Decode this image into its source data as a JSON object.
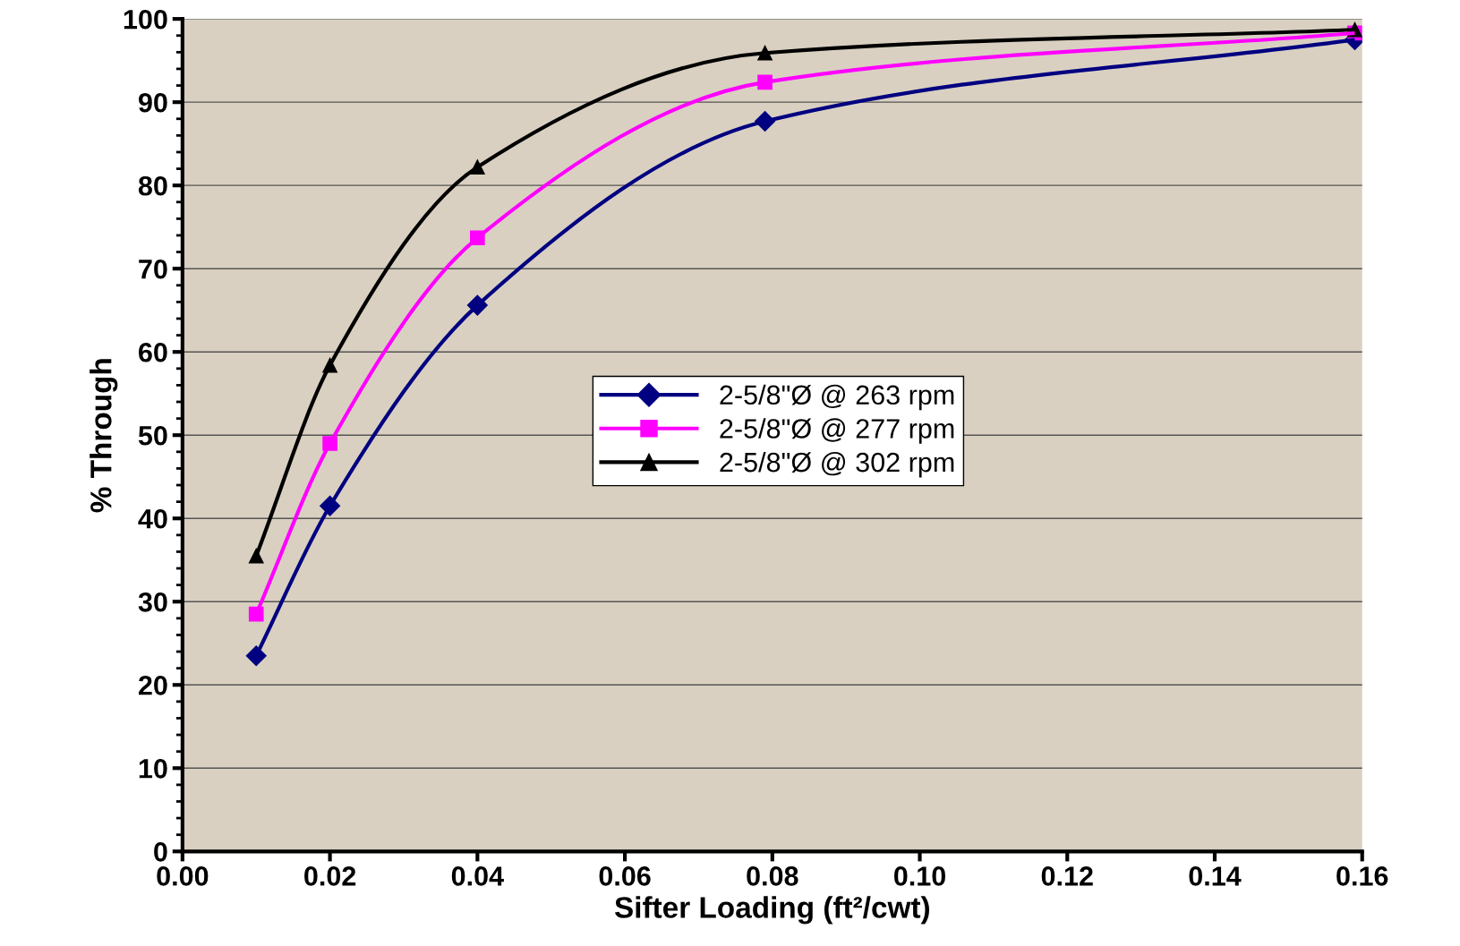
{
  "chart_data": {
    "type": "line",
    "xlabel": "Sifter Loading (ft²/cwt)",
    "ylabel": "% Through",
    "x": [
      0.01,
      0.02,
      0.04,
      0.079,
      0.159
    ],
    "series": [
      {
        "name": "2-5/8\"Ø @ 263 rpm",
        "color": "#000080",
        "marker": "diamond",
        "values": [
          23.5,
          41.5,
          65.6,
          87.7,
          97.5
        ]
      },
      {
        "name": "2-5/8\"Ø @ 277 rpm",
        "color": "#ff00ff",
        "marker": "square",
        "values": [
          28.5,
          49.0,
          73.7,
          92.4,
          98.3
        ]
      },
      {
        "name": "2-5/8\"Ø @ 302 rpm",
        "color": "#000000",
        "marker": "triangle",
        "values": [
          35.5,
          58.4,
          82.2,
          95.9,
          98.7
        ]
      }
    ],
    "xlim": [
      0,
      0.16
    ],
    "xticks": [
      {
        "value": 0,
        "label": "0.00"
      },
      {
        "value": 0.02,
        "label": "0.02"
      },
      {
        "value": 0.04,
        "label": "0.04"
      },
      {
        "value": 0.06,
        "label": "0.06"
      },
      {
        "value": 0.08,
        "label": "0.08"
      },
      {
        "value": 0.1,
        "label": "0.10"
      },
      {
        "value": 0.12,
        "label": "0.12"
      },
      {
        "value": 0.14,
        "label": "0.14"
      },
      {
        "value": 0.16,
        "label": "0.16"
      }
    ],
    "ylim": [
      0,
      100
    ],
    "yticks": [
      0,
      10,
      20,
      30,
      40,
      50,
      60,
      70,
      80,
      90,
      100
    ],
    "grid": "y",
    "legend": "center",
    "line_style": "solid"
  }
}
